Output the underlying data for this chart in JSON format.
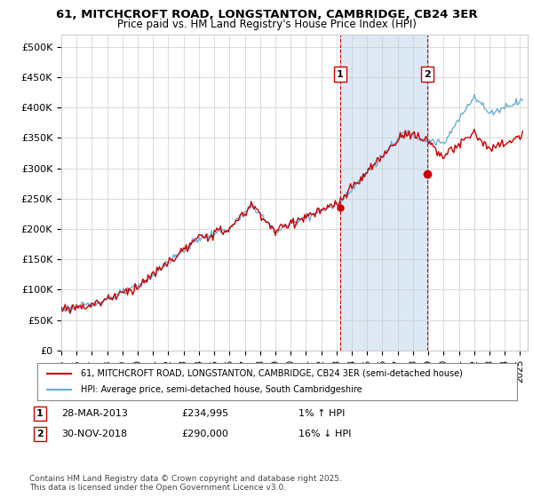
{
  "title": "61, MITCHCROFT ROAD, LONGSTANTON, CAMBRIDGE, CB24 3ER",
  "subtitle": "Price paid vs. HM Land Registry's House Price Index (HPI)",
  "ylim": [
    0,
    520000
  ],
  "yticks": [
    0,
    50000,
    100000,
    150000,
    200000,
    250000,
    300000,
    350000,
    400000,
    450000,
    500000
  ],
  "xlim_start": 1995.0,
  "xlim_end": 2025.5,
  "sale1_date": 2013.24,
  "sale1_price": 234995,
  "sale2_date": 2018.92,
  "sale2_price": 290000,
  "annotation1_label": "1",
  "annotation2_label": "2",
  "shade_color": "#dce9f5",
  "line_color_hpi": "#6baed6",
  "line_color_price": "#cc0000",
  "dashed_color": "#cc0000",
  "legend_label1": "61, MITCHCROFT ROAD, LONGSTANTON, CAMBRIDGE, CB24 3ER (semi-detached house)",
  "legend_label2": "HPI: Average price, semi-detached house, South Cambridgeshire",
  "note1_label": "1",
  "note1_date": "28-MAR-2013",
  "note1_price": "£234,995",
  "note1_hpi": "1% ↑ HPI",
  "note2_label": "2",
  "note2_date": "30-NOV-2018",
  "note2_price": "£290,000",
  "note2_hpi": "16% ↓ HPI",
  "footer": "Contains HM Land Registry data © Crown copyright and database right 2025.\nThis data is licensed under the Open Government Licence v3.0.",
  "bg_color": "#ffffff",
  "plot_bg_color": "#ffffff",
  "grid_color": "#cccccc"
}
